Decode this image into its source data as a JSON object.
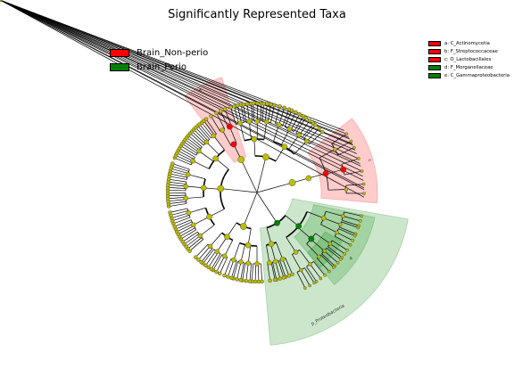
{
  "chart_data": {
    "type": "cladogram",
    "title": "Significantly Represented Taxa",
    "groups": [
      {
        "name": "Brain_Non-perio",
        "color": "#ff0000"
      },
      {
        "name": "Brain_Perio",
        "color": "#008000"
      }
    ],
    "node_color": "#bdbd00",
    "highlighted_taxa": [
      {
        "letter": "a",
        "label": "a: C_Actinomycetia",
        "group": "Brain_Non-perio",
        "color": "#ff0000",
        "level": "class"
      },
      {
        "letter": "b",
        "label": "b: F_Streptococcaceae",
        "group": "Brain_Non-perio",
        "color": "#ff0000",
        "level": "family"
      },
      {
        "letter": "c",
        "label": "c: O_Lactobacillales",
        "group": "Brain_Non-perio",
        "color": "#ff0000",
        "level": "order"
      },
      {
        "letter": "d",
        "label": "d: F_Morganellaceae",
        "group": "Brain_Perio",
        "color": "#008000",
        "level": "family"
      },
      {
        "letter": "e",
        "label": "e: C_Gammaproteobacteria",
        "group": "Brain_Perio",
        "color": "#008000",
        "level": "class"
      },
      {
        "letter": "p",
        "label": "p_Proteobacteria",
        "group": "Brain_Perio",
        "color": "#008000",
        "level": "phylum"
      }
    ]
  }
}
